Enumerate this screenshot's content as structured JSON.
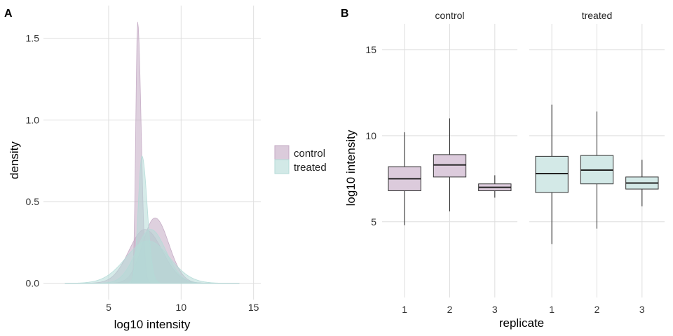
{
  "chart_data": [
    {
      "type": "area",
      "panel_label": "A",
      "xlabel": "log10 intensity",
      "ylabel": "density",
      "xlim": [
        0.5,
        15.5
      ],
      "ylim": [
        -0.1,
        1.7
      ],
      "x_ticks": [
        "5",
        "10",
        "15"
      ],
      "x_tick_values": [
        5,
        10,
        15
      ],
      "y_ticks": [
        "0.0",
        "0.5",
        "1.0",
        "1.5"
      ],
      "y_tick_values": [
        0,
        0.5,
        1.0,
        1.5
      ],
      "grid": true,
      "legend": {
        "placement": "right",
        "entries": [
          "control",
          "treated"
        ]
      },
      "colors": {
        "control": "#c3a9c3",
        "treated": "#b4dad7"
      },
      "series": [
        {
          "group": "control",
          "replicate": "1",
          "peak_x": 7.5,
          "peak_density": 0.33,
          "sd_left": 1.1,
          "sd_right": 1.2
        },
        {
          "group": "control",
          "replicate": "2",
          "peak_x": 8.2,
          "peak_density": 0.4,
          "sd_left": 0.85,
          "sd_right": 0.95
        },
        {
          "group": "control",
          "replicate": "3",
          "peak_x": 7.0,
          "peak_density": 1.6,
          "sd_left": 0.13,
          "sd_right": 0.24
        },
        {
          "group": "treated",
          "replicate": "1",
          "peak_x": 7.7,
          "peak_density": 0.26,
          "sd_left": 1.5,
          "sd_right": 1.5
        },
        {
          "group": "treated",
          "replicate": "2",
          "peak_x": 7.9,
          "peak_density": 0.33,
          "sd_left": 1.0,
          "sd_right": 1.05
        },
        {
          "group": "treated",
          "replicate": "3",
          "peak_x": 7.3,
          "peak_density": 0.78,
          "sd_left": 0.26,
          "sd_right": 0.36
        }
      ]
    },
    {
      "type": "box",
      "panel_label": "B",
      "xlabel": "replicate",
      "ylabel": "log10 intensity",
      "ylim": [
        0.6,
        16.5
      ],
      "y_ticks": [
        "5",
        "10",
        "15"
      ],
      "y_tick_values": [
        5,
        10,
        15
      ],
      "categories": [
        "1",
        "2",
        "3"
      ],
      "grid": true,
      "facets": [
        {
          "name": "control",
          "color": "#dccbdc",
          "boxes": [
            {
              "replicate": "1",
              "min": 4.8,
              "q1": 6.8,
              "median": 7.5,
              "q3": 8.2,
              "max": 10.2
            },
            {
              "replicate": "2",
              "min": 5.6,
              "q1": 7.6,
              "median": 8.3,
              "q3": 8.9,
              "max": 11.0
            },
            {
              "replicate": "3",
              "min": 6.4,
              "q1": 6.8,
              "median": 7.0,
              "q3": 7.2,
              "max": 7.7
            }
          ]
        },
        {
          "name": "treated",
          "color": "#d3e9e7",
          "boxes": [
            {
              "replicate": "1",
              "min": 3.7,
              "q1": 6.7,
              "median": 7.8,
              "q3": 8.8,
              "max": 11.8
            },
            {
              "replicate": "2",
              "min": 4.6,
              "q1": 7.2,
              "median": 8.0,
              "q3": 8.85,
              "max": 11.4
            },
            {
              "replicate": "3",
              "min": 5.9,
              "q1": 6.9,
              "median": 7.25,
              "q3": 7.6,
              "max": 8.6
            }
          ]
        }
      ]
    }
  ]
}
